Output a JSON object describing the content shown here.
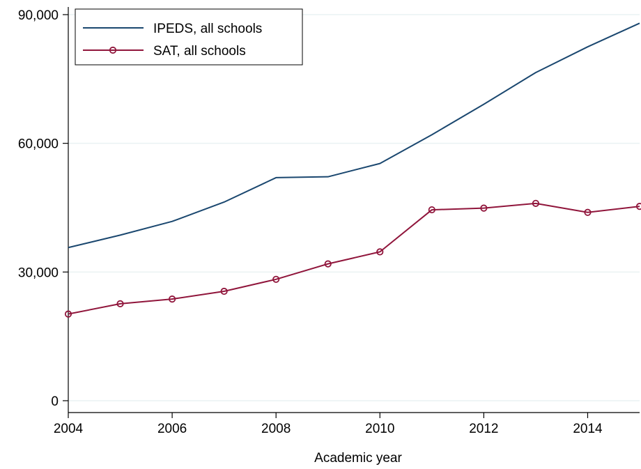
{
  "chart_data": {
    "type": "line",
    "title": "",
    "xlabel": "Academic year",
    "ylabel": "",
    "x": [
      2004,
      2005,
      2006,
      2007,
      2008,
      2009,
      2010,
      2011,
      2012,
      2013,
      2014,
      2015
    ],
    "xlim": [
      2004,
      2015
    ],
    "ylim": [
      0,
      90000
    ],
    "x_ticks": [
      2004,
      2006,
      2008,
      2010,
      2012,
      2014
    ],
    "x_tick_labels": [
      "2004",
      "2006",
      "2008",
      "2010",
      "2012",
      "2014"
    ],
    "y_ticks": [
      0,
      30000,
      60000,
      90000
    ],
    "y_tick_labels": [
      "0",
      "30,000",
      "60,000",
      "90,000"
    ],
    "grid": "horizontal",
    "legend_position": "top-left",
    "series": [
      {
        "name": "IPEDS, all schools",
        "color": "#1a476f",
        "marker": "none",
        "values": [
          35700,
          38600,
          41800,
          46300,
          52000,
          52200,
          55300,
          62000,
          69100,
          76500,
          82500,
          88000
        ]
      },
      {
        "name": "SAT, all schools",
        "color": "#90153b",
        "marker": "hollow-circle",
        "values": [
          20200,
          22600,
          23700,
          25500,
          28300,
          31900,
          34700,
          44500,
          44900,
          46000,
          43900,
          45300
        ]
      }
    ]
  }
}
